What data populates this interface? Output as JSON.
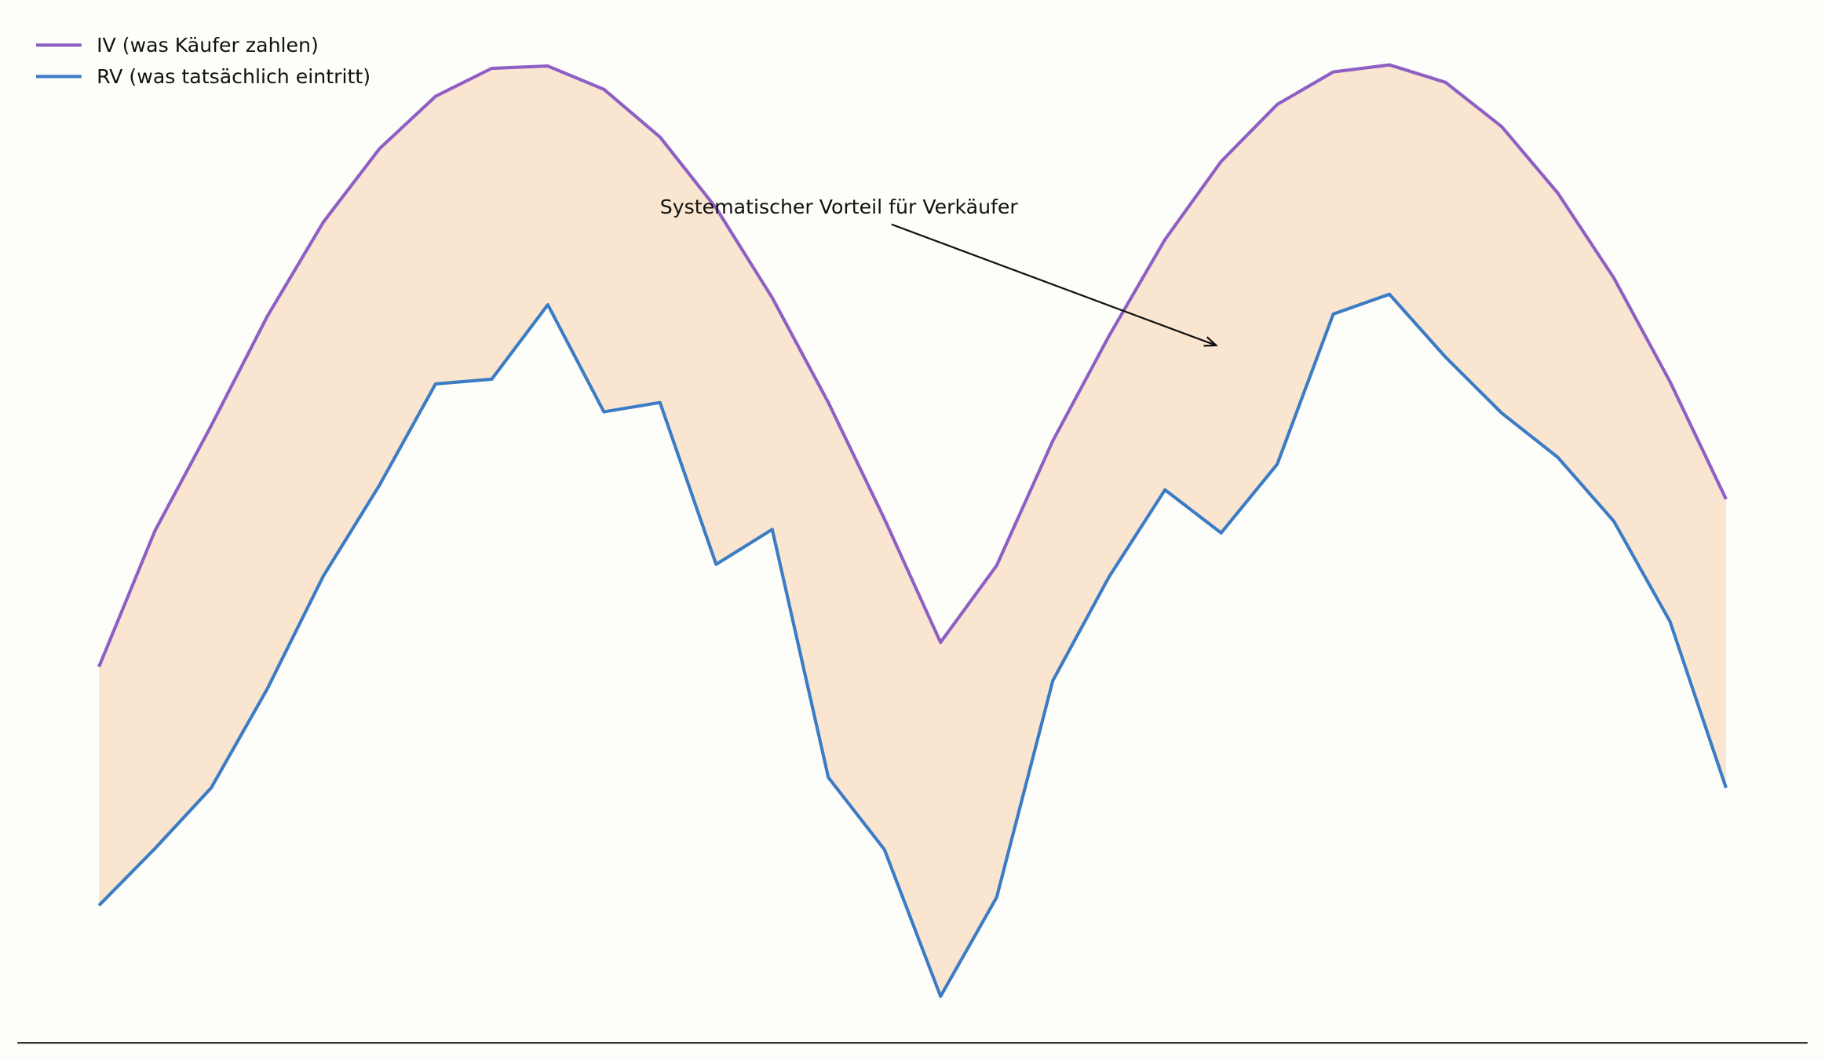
{
  "chart_data": {
    "type": "line",
    "annotation": "Systematischer Vorteil für Verkäufer",
    "categories": [
      null,
      null,
      null,
      null,
      null,
      null,
      null,
      null,
      null,
      null,
      null,
      null,
      null,
      null,
      null,
      null,
      null,
      null,
      null,
      null,
      null,
      null,
      null,
      null,
      null,
      null,
      null,
      null,
      null,
      null
    ],
    "ylim": [
      0,
      85
    ],
    "fill_between": true,
    "fill_color": "#fae6d0",
    "legend": "upper left",
    "series": [
      {
        "name": "IV (was Käufer zahlen)",
        "color": "#8e5fc4",
        "values": [
          32.3,
          44.0,
          53.0,
          62.4,
          70.5,
          76.8,
          81.3,
          83.7,
          83.9,
          81.9,
          77.8,
          71.7,
          64.0,
          55.0,
          45.0,
          34.4,
          41.0,
          51.7,
          60.7,
          69.0,
          75.7,
          80.6,
          83.4,
          84.0,
          82.5,
          78.7,
          73.0,
          65.7,
          56.8,
          46.7
        ]
      },
      {
        "name": "RV (was tatsächlich eintritt)",
        "color": "#3b7cc4",
        "values": [
          11.8,
          16.7,
          21.9,
          30.4,
          40.1,
          47.9,
          56.6,
          57.0,
          63.4,
          54.2,
          55.0,
          41.1,
          44.1,
          22.8,
          16.6,
          4.0,
          12.5,
          31.1,
          40.0,
          47.5,
          43.8,
          49.7,
          62.6,
          64.3,
          58.9,
          54.1,
          50.3,
          44.8,
          36.2,
          21.9
        ]
      }
    ]
  }
}
